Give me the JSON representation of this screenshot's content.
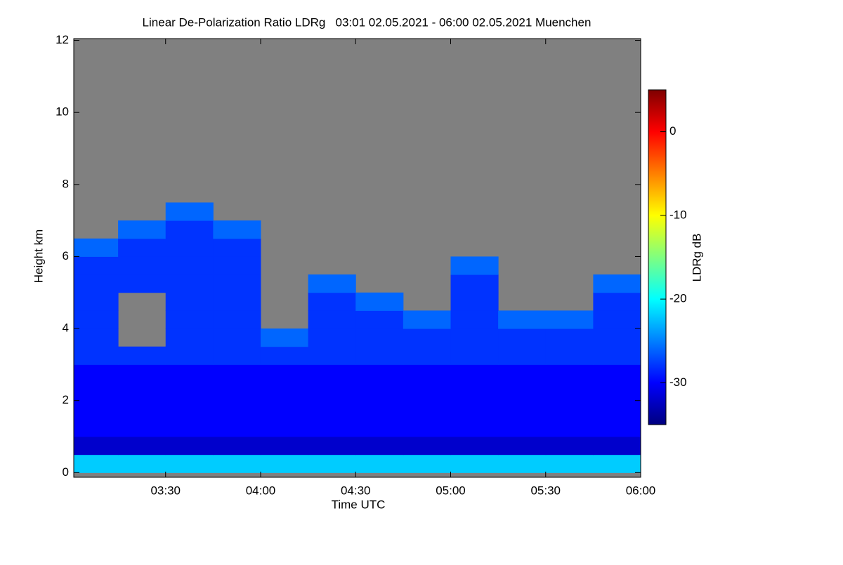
{
  "chart_data": {
    "type": "heatmap",
    "title": "Linear De-Polarization Ratio LDRg   03:01 02.05.2021 - 06:00 02.05.2021 Muenchen",
    "x_label": "Time UTC",
    "y_label": "Height km",
    "colorbar_label": "LDRg dB",
    "xlim": [
      3.0167,
      6.0
    ],
    "xticks": [
      {
        "value": 3.5,
        "label": "03:30"
      },
      {
        "value": 4.0,
        "label": "04:00"
      },
      {
        "value": 4.5,
        "label": "04:30"
      },
      {
        "value": 5.0,
        "label": "05:00"
      },
      {
        "value": 5.5,
        "label": "05:30"
      },
      {
        "value": 6.0,
        "label": "06:00"
      }
    ],
    "ylim": [
      -0.13,
      12.05
    ],
    "yticks": [
      0,
      2,
      4,
      6,
      8,
      10,
      12
    ],
    "clim": [
      -35,
      5
    ],
    "cticks": [
      -30,
      -20,
      -10,
      0
    ],
    "colormap": "jet",
    "missing_color": "#808080",
    "x_edges": [
      3.0167,
      3.25,
      3.5,
      3.75,
      4.0,
      4.25,
      4.5,
      4.75,
      5.0,
      5.25,
      5.5,
      5.75,
      6.0
    ],
    "y_edges": [
      0,
      0.5,
      1,
      1.5,
      2,
      2.5,
      3,
      3.5,
      4,
      4.5,
      5,
      5.5,
      6,
      6.5,
      7,
      7.5,
      8
    ],
    "values": [
      [
        -22,
        -22,
        -22,
        -22,
        -22,
        -22,
        -22,
        -22,
        -22,
        -22,
        -22,
        -22
      ],
      [
        -32,
        -32,
        -32,
        -32,
        -32,
        -32,
        -32,
        -32,
        -32,
        -32,
        -32,
        -32
      ],
      [
        -30,
        -30,
        -30,
        -30,
        -30,
        -30,
        -30,
        -30,
        -30,
        -30,
        -30,
        -30
      ],
      [
        -30,
        -30,
        -30,
        -30,
        -30,
        -30,
        -30,
        -30,
        -30,
        -30,
        -30,
        -30
      ],
      [
        -30,
        -30,
        -30,
        -30,
        -30,
        -30,
        -30,
        -30,
        -30,
        -30,
        -30,
        -30
      ],
      [
        -30,
        -30,
        -30,
        -30,
        -30,
        -30,
        -30,
        -30,
        -30,
        -30,
        -30,
        -30
      ],
      [
        -28,
        -28,
        -28,
        -28,
        -28,
        -28,
        -28,
        -28,
        -28,
        -28,
        -28,
        -28
      ],
      [
        -28,
        null,
        -28,
        -28,
        -26,
        -28,
        -28,
        -28,
        -28,
        -28,
        -28,
        -28
      ],
      [
        -28,
        null,
        -28,
        -28,
        null,
        -28,
        -28,
        -26,
        -28,
        -26,
        -26,
        -28
      ],
      [
        -28,
        null,
        -28,
        -28,
        null,
        -28,
        -26,
        null,
        -28,
        null,
        null,
        -28
      ],
      [
        -28,
        -28,
        -28,
        -28,
        null,
        -26,
        null,
        null,
        -28,
        null,
        null,
        -26
      ],
      [
        -28,
        -28,
        -28,
        -28,
        null,
        null,
        null,
        null,
        -26,
        null,
        null,
        null
      ],
      [
        -26,
        -28,
        -28,
        -28,
        null,
        null,
        null,
        null,
        null,
        null,
        null,
        null
      ],
      [
        null,
        -26,
        -28,
        -26,
        null,
        null,
        null,
        null,
        null,
        null,
        null,
        null
      ],
      [
        null,
        null,
        -26,
        null,
        null,
        null,
        null,
        null,
        null,
        null,
        null,
        null
      ],
      [
        null,
        null,
        null,
        null,
        null,
        null,
        null,
        null,
        null,
        null,
        null,
        null
      ]
    ]
  }
}
